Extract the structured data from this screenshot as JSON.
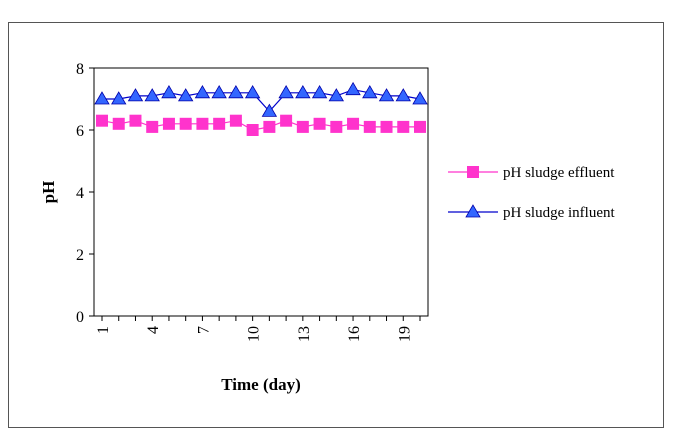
{
  "chart_data": {
    "type": "line",
    "xlabel": "Time (day)",
    "ylabel": "pH",
    "ylim": [
      0,
      8
    ],
    "yticks": [
      0,
      2,
      4,
      6,
      8
    ],
    "xlim": [
      1,
      20
    ],
    "xticks": [
      1,
      4,
      7,
      10,
      13,
      16,
      19
    ],
    "x": [
      1,
      2,
      3,
      4,
      5,
      6,
      7,
      8,
      9,
      10,
      11,
      12,
      13,
      14,
      15,
      16,
      17,
      18,
      19,
      20
    ],
    "legend_position": "right",
    "series": [
      {
        "name": "pH sludge effluent",
        "color": "#ff33cc",
        "line_color": "#ff33cc",
        "marker": "square",
        "values": [
          6.3,
          6.2,
          6.3,
          6.1,
          6.2,
          6.2,
          6.2,
          6.2,
          6.3,
          6.0,
          6.1,
          6.3,
          6.1,
          6.2,
          6.1,
          6.2,
          6.1,
          6.1,
          6.1,
          6.1
        ]
      },
      {
        "name": "pH sludge influent",
        "color": "#3366ff",
        "line_color": "#0000cc",
        "marker": "triangle",
        "values": [
          7.0,
          7.0,
          7.1,
          7.1,
          7.2,
          7.1,
          7.2,
          7.2,
          7.2,
          7.2,
          6.6,
          7.2,
          7.2,
          7.2,
          7.1,
          7.3,
          7.2,
          7.1,
          7.1,
          7.0
        ]
      }
    ]
  }
}
